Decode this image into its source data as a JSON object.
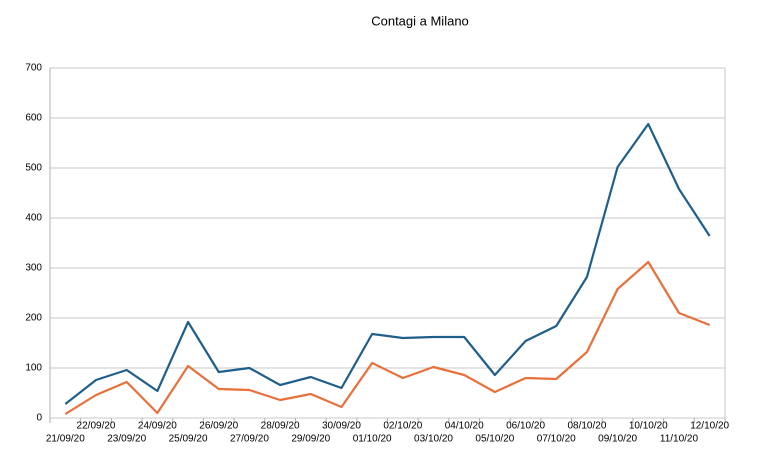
{
  "chart_data": {
    "type": "line",
    "title": "Contagi a Milano",
    "categories": [
      "21/09/20",
      "22/09/20",
      "23/09/20",
      "24/09/20",
      "25/09/20",
      "26/09/20",
      "27/09/20",
      "28/09/20",
      "29/09/20",
      "30/09/20",
      "01/10/20",
      "02/10/20",
      "03/10/20",
      "04/10/20",
      "05/10/20",
      "06/10/20",
      "07/10/20",
      "08/10/20",
      "09/10/20",
      "10/10/20",
      "11/10/20",
      "12/10/20"
    ],
    "series": [
      {
        "color": "#1f5f8b",
        "values": [
          28,
          76,
          96,
          54,
          192,
          92,
          100,
          66,
          82,
          60,
          168,
          160,
          162,
          162,
          86,
          154,
          184,
          282,
          502,
          588,
          458,
          364
        ]
      },
      {
        "color": "#e8703a",
        "values": [
          8,
          46,
          72,
          10,
          104,
          58,
          56,
          36,
          48,
          22,
          110,
          80,
          102,
          86,
          52,
          80,
          78,
          132,
          258,
          312,
          210,
          186
        ]
      }
    ],
    "ylim": [
      0,
      700
    ],
    "yticks": [
      0,
      100,
      200,
      300,
      400,
      500,
      600,
      700
    ],
    "grid": true
  }
}
